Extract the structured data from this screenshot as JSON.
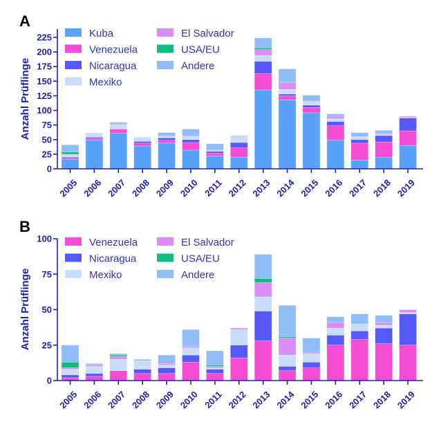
{
  "chart_data": [
    {
      "panel": "A",
      "type": "bar",
      "stacked": true,
      "title": "",
      "xlabel": "",
      "ylabel": "Anzahl Prüflinge",
      "ylim": [
        0,
        225
      ],
      "yticks": [
        0,
        25,
        50,
        75,
        100,
        125,
        150,
        175,
        200,
        225
      ],
      "legend_position": "top-left",
      "grid": false,
      "categories": [
        "2005",
        "2006",
        "2007",
        "2008",
        "2009",
        "2010",
        "2011",
        "2012",
        "2013",
        "2014",
        "2015",
        "2016",
        "2017",
        "2018",
        "2019"
      ],
      "series": [
        {
          "name": "Kuba",
          "color": "#58a2fa",
          "values": [
            16,
            49,
            61,
            39,
            44,
            32,
            22,
            20,
            135,
            118,
            96,
            49,
            15,
            20,
            40
          ]
        },
        {
          "name": "Venezuela",
          "color": "#f64dd7",
          "values": [
            2,
            3,
            7,
            5,
            5,
            13,
            5,
            16,
            28,
            7,
            9,
            25,
            29,
            26,
            25
          ]
        },
        {
          "name": "Nicaragua",
          "color": "#5658fa",
          "values": [
            2,
            2,
            0,
            3,
            4,
            5,
            3,
            9,
            21,
            3,
            4,
            7,
            6,
            11,
            22
          ]
        },
        {
          "name": "Mexiko",
          "color": "#c8ddf7",
          "values": [
            4,
            5,
            8,
            6,
            2,
            5,
            1,
            11,
            10,
            8,
            6,
            5,
            5,
            2,
            1
          ]
        },
        {
          "name": "El Salvador",
          "color": "#dc8cf5",
          "values": [
            1,
            1,
            2,
            0,
            1,
            1,
            1,
            1,
            10,
            12,
            1,
            4,
            0,
            2,
            2
          ]
        },
        {
          "name": "USA/EU",
          "color": "#10bd7c",
          "values": [
            4,
            0,
            1,
            0,
            0,
            0,
            1,
            0,
            3,
            1,
            0,
            0,
            0,
            0,
            0
          ]
        },
        {
          "name": "Andere",
          "color": "#8fbdf8",
          "values": [
            12,
            1,
            1,
            1,
            6,
            12,
            10,
            0,
            17,
            22,
            10,
            4,
            7,
            5,
            0
          ]
        }
      ],
      "legend": [
        "Kuba",
        "Venezuela",
        "Nicaragua",
        "Mexiko",
        "El Salvador",
        "USA/EU",
        "Andere"
      ]
    },
    {
      "panel": "B",
      "type": "bar",
      "stacked": true,
      "title": "",
      "xlabel": "",
      "ylabel": "Anzahl Prüflinge",
      "ylim": [
        0,
        100
      ],
      "yticks": [
        0,
        25,
        50,
        75,
        100
      ],
      "legend_position": "top-left",
      "grid": false,
      "categories": [
        "2005",
        "2006",
        "2007",
        "2008",
        "2009",
        "2010",
        "2011",
        "2012",
        "2013",
        "2014",
        "2015",
        "2016",
        "2017",
        "2018",
        "2019"
      ],
      "series": [
        {
          "name": "Venezuela",
          "color": "#f64dd7",
          "values": [
            2,
            3,
            7,
            5,
            5,
            13,
            5,
            16,
            28,
            7,
            9,
            25,
            29,
            26,
            25
          ]
        },
        {
          "name": "Nicaragua",
          "color": "#5658fa",
          "values": [
            2,
            2,
            0,
            3,
            4,
            5,
            3,
            9,
            21,
            3,
            4,
            7,
            6,
            11,
            22
          ]
        },
        {
          "name": "Mexiko",
          "color": "#c8ddf7",
          "values": [
            4,
            5,
            8,
            6,
            2,
            5,
            1,
            11,
            10,
            8,
            6,
            5,
            5,
            2,
            1
          ]
        },
        {
          "name": "El Salvador",
          "color": "#dc8cf5",
          "values": [
            1,
            1,
            2,
            0,
            1,
            1,
            1,
            1,
            10,
            12,
            1,
            4,
            0,
            2,
            2
          ]
        },
        {
          "name": "USA/EU",
          "color": "#10bd7c",
          "values": [
            4,
            0,
            1,
            0,
            0,
            0,
            1,
            0,
            3,
            1,
            0,
            0,
            0,
            0,
            0
          ]
        },
        {
          "name": "Andere",
          "color": "#8fbdf8",
          "values": [
            12,
            1,
            1,
            1,
            6,
            12,
            10,
            0,
            17,
            22,
            10,
            4,
            7,
            5,
            0
          ]
        }
      ],
      "legend": [
        "Venezuela",
        "Nicaragua",
        "Mexiko",
        "El Salvador",
        "USA/EU",
        "Andere"
      ]
    }
  ],
  "axis_color": "#2020b0"
}
